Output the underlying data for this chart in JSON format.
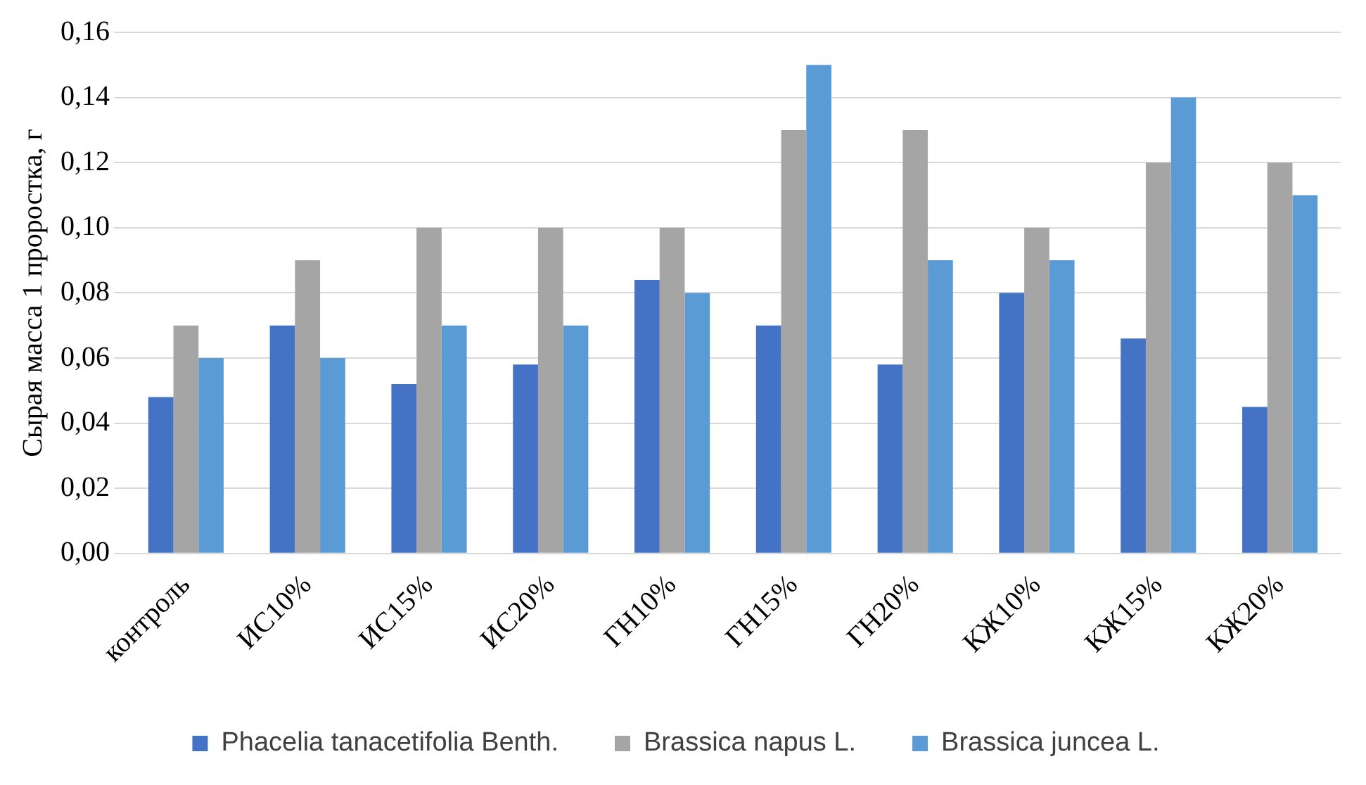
{
  "chart_data": {
    "type": "bar",
    "ylabel": "Сырая масса 1 проростка, г",
    "categories": [
      "контроль",
      "ИС10%",
      "ИС15%",
      "ИС20%",
      "ГН10%",
      "ГН15%",
      "ГН20%",
      "КЖ10%",
      "КЖ15%",
      "КЖ20%"
    ],
    "series": [
      {
        "name": "Phacelia tanacetifolia Benth.",
        "color": "#4472c4",
        "values": [
          0.048,
          0.07,
          0.052,
          0.058,
          0.084,
          0.07,
          0.058,
          0.08,
          0.066,
          0.045
        ]
      },
      {
        "name": "Brassica napus L.",
        "color": "#a5a5a5",
        "values": [
          0.07,
          0.09,
          0.1,
          0.1,
          0.1,
          0.13,
          0.13,
          0.1,
          0.12,
          0.12
        ]
      },
      {
        "name": "Brassica juncea L.",
        "color": "#5b9bd5",
        "values": [
          0.06,
          0.06,
          0.07,
          0.07,
          0.08,
          0.15,
          0.09,
          0.09,
          0.14,
          0.11
        ]
      }
    ],
    "ylim": [
      0,
      0.16
    ],
    "yticks": [
      {
        "value": 0,
        "label": "0,00"
      },
      {
        "value": 0.02,
        "label": "0,02"
      },
      {
        "value": 0.04,
        "label": "0,04"
      },
      {
        "value": 0.06,
        "label": "0,06"
      },
      {
        "value": 0.08,
        "label": "0,08"
      },
      {
        "value": 0.1,
        "label": "0,10"
      },
      {
        "value": 0.12,
        "label": "0,12"
      },
      {
        "value": 0.14,
        "label": "0,14"
      },
      {
        "value": 0.16,
        "label": "0,16"
      }
    ],
    "grid": "y",
    "legend": "bottom"
  }
}
